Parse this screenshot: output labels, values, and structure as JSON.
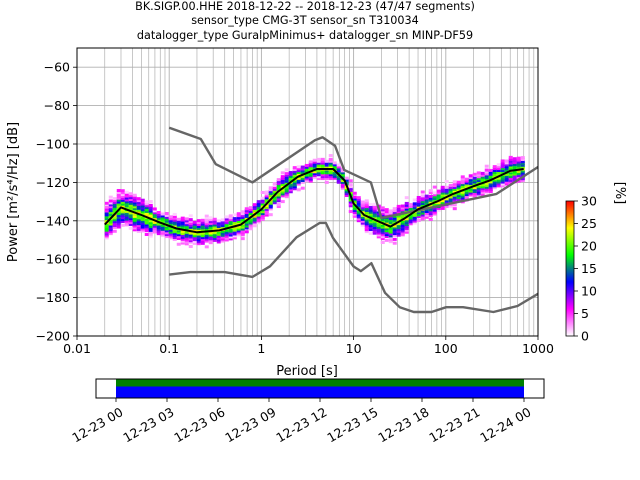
{
  "chart_data": {
    "type": "heatmap",
    "title_lines": [
      "BK.SIGP.00.HHE   2018-12-22 -- 2018-12-23  (47/47 segments)",
      "sensor_type CMG-3T sensor_sn T310034",
      "datalogger_type GuralpMinimus+ datalogger_sn MINP-DF59"
    ],
    "xlabel": "Period [s]",
    "xscale": "log",
    "xlim": [
      0.01,
      1000
    ],
    "x_ticks": [
      0.01,
      0.1,
      1,
      10,
      100,
      1000
    ],
    "x_tick_labels": [
      "0.01",
      "0.1",
      "1",
      "10",
      "100",
      "1000"
    ],
    "ylabel": "Power [m²/s⁴/Hz] [dB]",
    "ylim": [
      -200,
      -50
    ],
    "y_ticks": [
      -60,
      -80,
      -100,
      -120,
      -140,
      -160,
      -180,
      -200
    ],
    "y_tick_labels": [
      "−60",
      "−80",
      "−100",
      "−120",
      "−140",
      "−160",
      "−180",
      "−200"
    ],
    "grid": true,
    "colorbar": {
      "label": "[%]",
      "range": [
        0,
        30
      ],
      "ticks": [
        0,
        5,
        10,
        15,
        20,
        25,
        30
      ],
      "tick_labels": [
        "0",
        "5",
        "10",
        "15",
        "20",
        "25",
        "30"
      ],
      "colors": [
        "#ffffff",
        "#ff00ff",
        "#0000ff",
        "#00ff00",
        "#ffff00",
        "#ff0000"
      ]
    },
    "mean_curve": {
      "x": [
        0.02,
        0.03,
        0.05,
        0.08,
        0.12,
        0.2,
        0.35,
        0.6,
        1.0,
        1.5,
        2.5,
        4,
        6,
        8,
        10,
        13,
        18,
        25,
        35,
        50,
        80,
        120,
        200,
        300,
        500,
        700
      ],
      "y": [
        -142,
        -133,
        -137,
        -141,
        -144,
        -146,
        -145,
        -142,
        -134,
        -125,
        -117,
        -113,
        -113,
        -119,
        -131,
        -137,
        -140,
        -143,
        -139,
        -134,
        -130,
        -126,
        -122,
        -119,
        -114,
        -113
      ]
    },
    "noise_models": {
      "nhnm": {
        "x": [
          0.1,
          0.22,
          0.32,
          0.8,
          3.8,
          4.6,
          6.3,
          7.9,
          15.4,
          20,
          354.8,
          1000
        ],
        "y": [
          -91.5,
          -97.4,
          -110.5,
          -120,
          -98,
          -96.5,
          -101,
          -113.5,
          -120,
          -138.5,
          -126,
          -112
        ]
      },
      "nlnm": {
        "x": [
          0.1,
          0.17,
          0.4,
          0.8,
          1.24,
          2.4,
          4.3,
          5,
          6,
          10,
          12,
          15.6,
          21.9,
          31.6,
          45,
          70,
          101,
          154,
          328,
          600,
          1000
        ],
        "y": [
          -168,
          -166.7,
          -166.7,
          -169.2,
          -163.7,
          -148.6,
          -141.1,
          -141.1,
          -149,
          -163.8,
          -166.2,
          -162.1,
          -177.5,
          -185,
          -187.5,
          -187.5,
          -185,
          -185,
          -187.5,
          -184.4,
          -178
        ]
      }
    },
    "timeline": {
      "tick_labels": [
        "12-23 00",
        "12-23 03",
        "12-23 06",
        "12-23 09",
        "12-23 12",
        "12-23 15",
        "12-23 18",
        "12-23 21",
        "12-24 00"
      ],
      "bands": [
        {
          "color": "#008000",
          "from_label": "12-23 00",
          "to_label": "12-24 00"
        },
        {
          "color": "#0000ff",
          "from_label": "12-23 00",
          "to_label": "12-24 00"
        }
      ]
    }
  }
}
